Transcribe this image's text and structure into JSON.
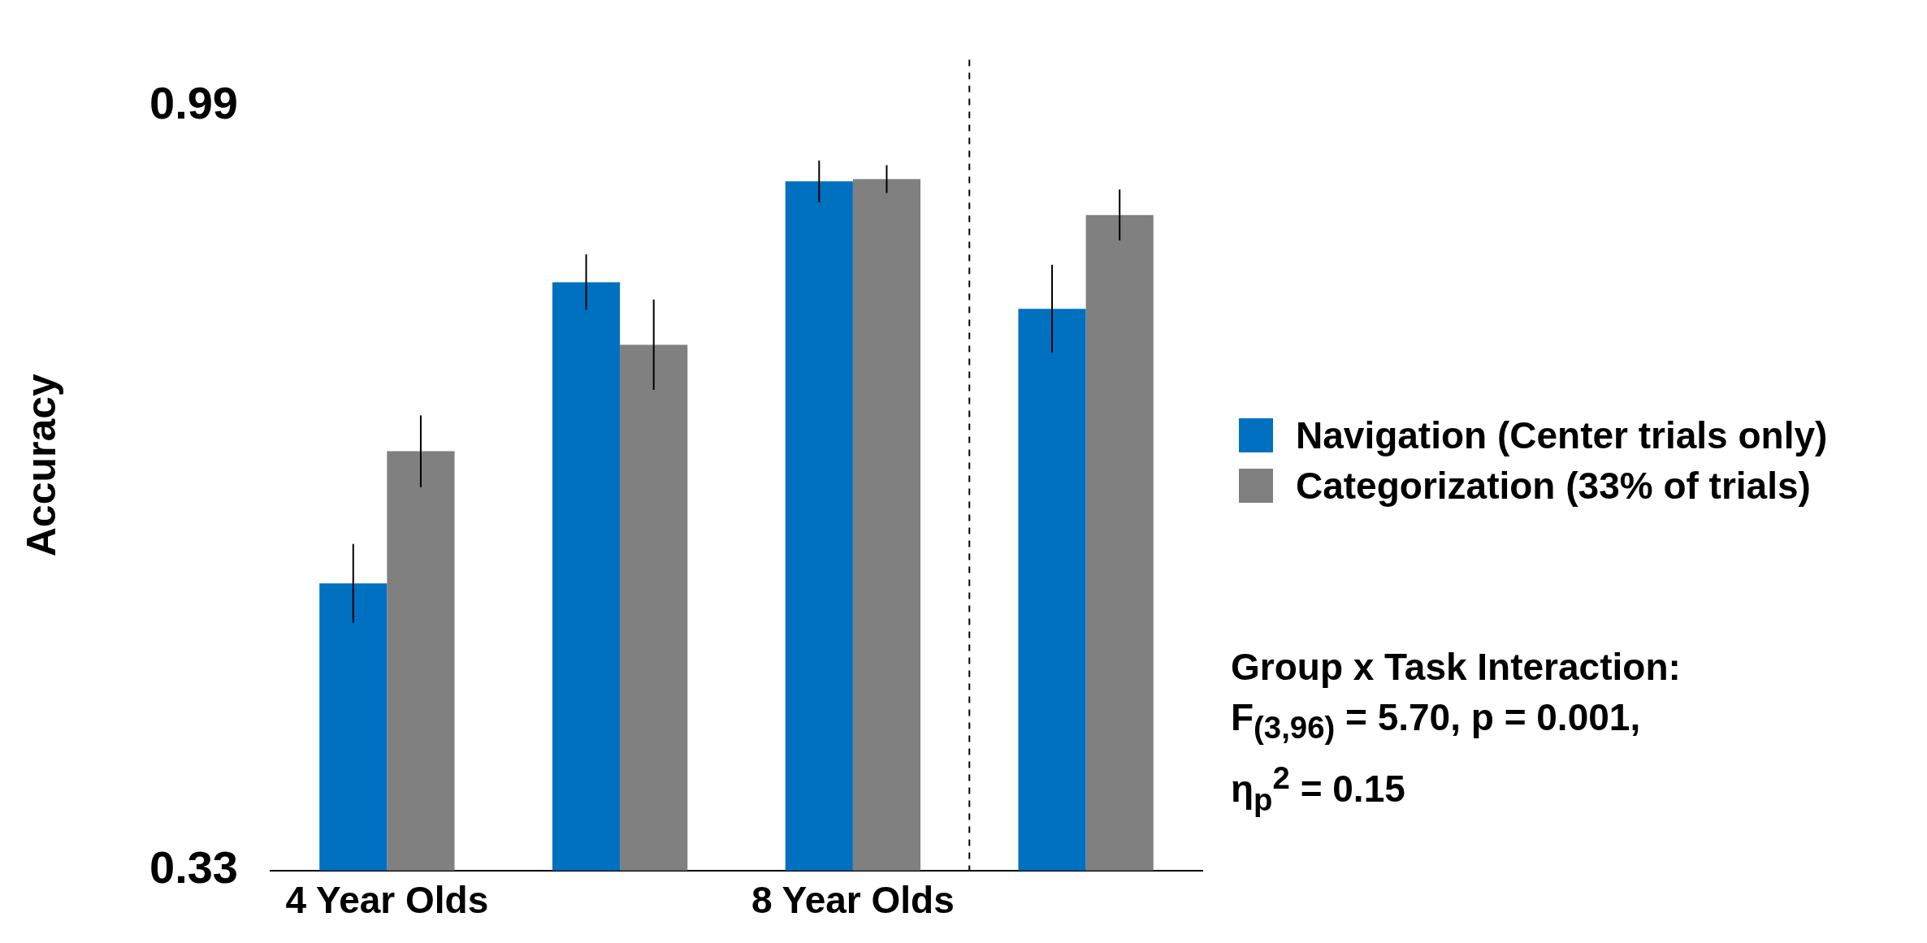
{
  "chart_data": {
    "type": "bar",
    "categories": [
      "4 Year Olds",
      null,
      "8 Year Olds",
      null
    ],
    "series": [
      {
        "name": "Navigation (Center trials only)",
        "color": "#0070c0",
        "values": [
          0.578,
          0.838,
          0.925,
          0.815
        ],
        "errors": [
          0.034,
          0.024,
          0.018,
          0.038
        ]
      },
      {
        "name": "Categorization (33% of trials)",
        "color": "#808080",
        "values": [
          0.692,
          0.784,
          0.927,
          0.896
        ],
        "errors": [
          0.031,
          0.039,
          0.012,
          0.022
        ]
      }
    ],
    "ylabel": "Accuracy",
    "ylim": [
      0.33,
      1.03
    ],
    "yticks": [
      0.33,
      0.99
    ],
    "annotations": [
      "Group x Task Interaction:",
      "F$_{(3,96)}$ = 5.70, p = 0.001,",
      "η$_{p}$$^{2}$ = 0.15"
    ],
    "legend": "right",
    "grid": false
  }
}
